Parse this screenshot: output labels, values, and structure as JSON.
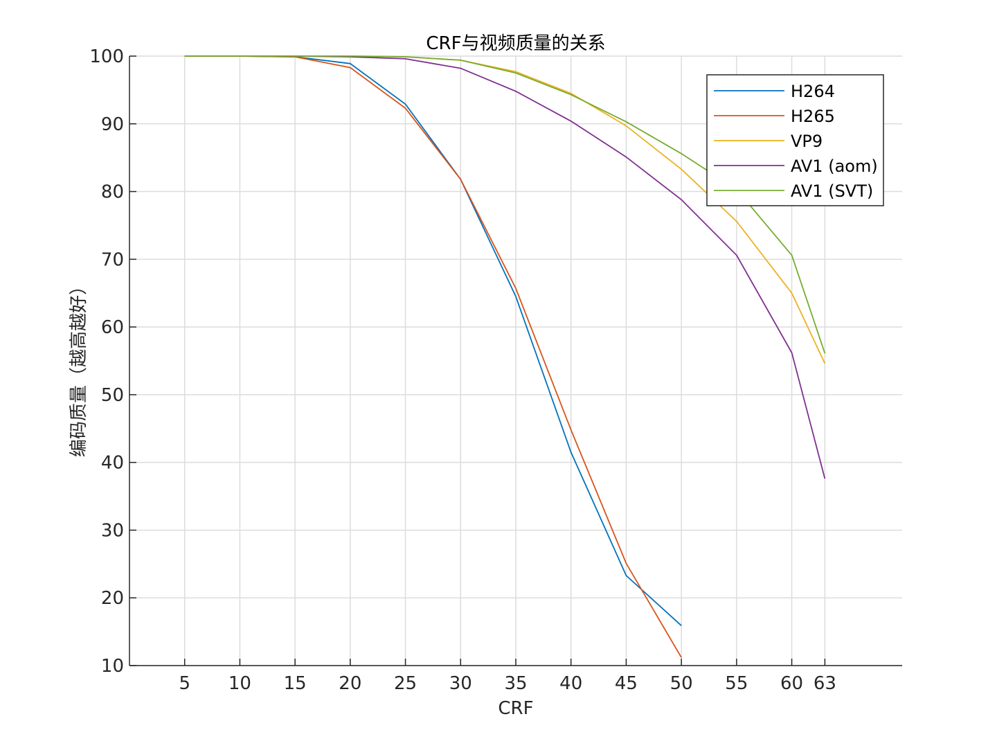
{
  "chart_data": {
    "type": "line",
    "title": "CRF与视频质量的关系",
    "xlabel": "CRF",
    "ylabel": "编码质量（越高越好）",
    "x": [
      5,
      10,
      15,
      20,
      25,
      30,
      35,
      40,
      45,
      50,
      55,
      60,
      63
    ],
    "xticks": [
      "5",
      "10",
      "15",
      "20",
      "25",
      "30",
      "35",
      "40",
      "45",
      "50",
      "55",
      "60",
      "63"
    ],
    "yticks": [
      "10",
      "20",
      "30",
      "40",
      "50",
      "60",
      "70",
      "80",
      "90",
      "100"
    ],
    "xlim": [
      0,
      70
    ],
    "ylim": [
      10,
      100
    ],
    "grid": true,
    "legend_position": "upper right",
    "series": [
      {
        "name": "H264",
        "color": "#0072BD",
        "values": [
          100,
          100,
          99.9,
          98.9,
          92.9,
          81.8,
          64.5,
          41.5,
          23.3,
          15.9,
          null,
          null,
          null
        ]
      },
      {
        "name": "H265",
        "color": "#D95319",
        "values": [
          100,
          100,
          99.9,
          98.3,
          92.3,
          81.8,
          65.7,
          44.8,
          25.1,
          11.2,
          null,
          null,
          null
        ]
      },
      {
        "name": "VP9",
        "color": "#EDB120",
        "values": [
          100,
          100,
          100,
          100,
          99.9,
          99.4,
          97.7,
          94.5,
          89.7,
          83.3,
          75.6,
          65.0,
          54.6
        ]
      },
      {
        "name": "AV1 (aom)",
        "color": "#7E2F8E",
        "values": [
          100,
          100,
          100,
          99.9,
          99.6,
          98.2,
          94.8,
          90.4,
          85.1,
          78.8,
          70.6,
          56.2,
          37.6
        ]
      },
      {
        "name": "AV1 (SVT)",
        "color": "#77AC30",
        "values": [
          100,
          100,
          100,
          100,
          99.9,
          99.4,
          97.5,
          94.3,
          90.3,
          85.6,
          80.3,
          70.6,
          56.1
        ]
      }
    ]
  }
}
